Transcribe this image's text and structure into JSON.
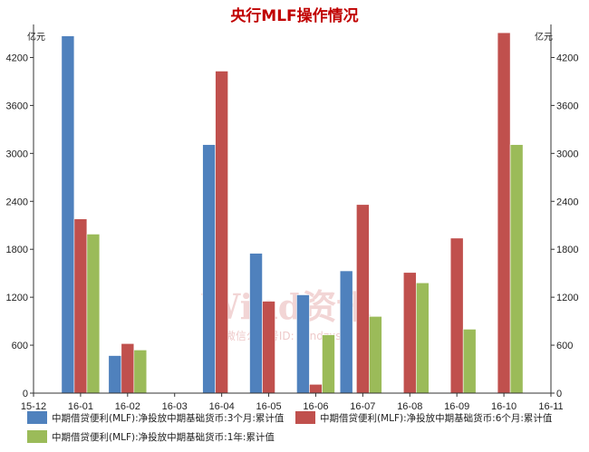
{
  "chart_data": {
    "type": "bar",
    "title": "央行MLF操作情况",
    "unit_left": "亿元",
    "unit_right": "亿元",
    "x_ticks": [
      "15-12",
      "16-01",
      "16-02",
      "16-03",
      "16-04",
      "16-05",
      "16-06",
      "16-07",
      "16-08",
      "16-09",
      "16-10",
      "16-11"
    ],
    "categories": [
      "16-01",
      "16-02",
      "16-03",
      "16-04",
      "16-05",
      "16-06",
      "16-07",
      "16-08",
      "16-09",
      "16-10"
    ],
    "ylim": [
      0,
      4500
    ],
    "y_ticks": [
      0,
      600,
      1200,
      1800,
      2400,
      3000,
      3600,
      4200
    ],
    "grid": false,
    "legend_position": "bottom",
    "series": [
      {
        "name": "中期借贷便利(MLF):净投放中期基础货币:3个月:累计值",
        "color": "#4f81bd",
        "values": [
          4470,
          470,
          0,
          3110,
          1750,
          1230,
          0,
          0,
          0,
          0
        ]
      },
      {
        "name": "中期借贷便利(MLF):净投放中期基础货币:6个月:累计值",
        "color": "#c0504d",
        "values": [
          2180,
          620,
          0,
          4030,
          1150,
          110,
          2360,
          1510,
          1940,
          4510
        ]
      },
      {
        "name": "中期借贷便利(MLF):净投放中期基础货币:1年:累计值",
        "color": "#9bbb59",
        "values": [
          1990,
          540,
          0,
          0,
          0,
          730,
          960,
          1380,
          800,
          3110
        ]
      }
    ],
    "extra_bars": [
      {
        "category": "16-07",
        "offset": -0.35,
        "value": 1530,
        "color": "#4f81bd"
      }
    ],
    "watermark": {
      "main": "Wind资讯",
      "sub": "微信公众号ID: windzxsh"
    }
  }
}
